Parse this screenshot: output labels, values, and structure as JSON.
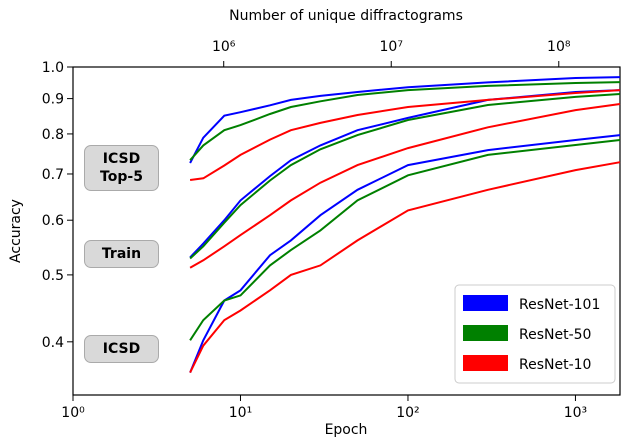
{
  "chart_data": {
    "type": "line",
    "x_label": "Epoch",
    "y_label": "Accuracy",
    "top_axis_label": "Number of unique diffractograms",
    "x": [
      5,
      6,
      8,
      10,
      15,
      20,
      30,
      50,
      100,
      300,
      1000,
      1845
    ],
    "xlim": [
      1,
      1845
    ],
    "x_log": true,
    "xticks": [
      {
        "value": 1,
        "label": "10⁰"
      },
      {
        "value": 10,
        "label": "10¹"
      },
      {
        "value": 100,
        "label": "10²"
      },
      {
        "value": 1000,
        "label": "10³"
      }
    ],
    "top_xlim": [
      126000,
      232000000
    ],
    "top_xticks": [
      {
        "value": 1000000,
        "label": "10⁶"
      },
      {
        "value": 10000000,
        "label": "10⁷"
      },
      {
        "value": 100000000,
        "label": "10⁸"
      }
    ],
    "ylim": [
      0.335,
      1
    ],
    "y_log": true,
    "yticks": [
      0.4,
      0.5,
      0.6,
      0.7,
      0.8,
      0.9,
      {
        "value": 1,
        "label": "1.0"
      }
    ],
    "metrics": [
      "ICSD Top-5",
      "Train",
      "ICSD"
    ],
    "legend": "lower right",
    "series": [
      {
        "name": "ResNet-101",
        "color": "#0000ff",
        "values": [
          [
            0.726,
            0.79,
            0.85,
            0.86,
            0.88,
            0.896,
            0.908,
            0.92,
            0.935,
            0.95,
            0.964,
            0.967
          ],
          [
            0.53,
            0.555,
            0.6,
            0.641,
            0.695,
            0.733,
            0.77,
            0.81,
            0.844,
            0.896,
            0.92,
            0.926
          ],
          [
            0.361,
            0.402,
            0.459,
            0.475,
            0.534,
            0.561,
            0.61,
            0.664,
            0.721,
            0.758,
            0.784,
            0.797
          ]
        ]
      },
      {
        "name": "ResNet-50",
        "color": "#008000",
        "values": [
          [
            0.733,
            0.77,
            0.81,
            0.824,
            0.855,
            0.875,
            0.892,
            0.911,
            0.926,
            0.939,
            0.948,
            0.951
          ],
          [
            0.528,
            0.55,
            0.595,
            0.631,
            0.685,
            0.721,
            0.76,
            0.797,
            0.838,
            0.881,
            0.905,
            0.914
          ],
          [
            0.402,
            0.43,
            0.459,
            0.467,
            0.516,
            0.543,
            0.58,
            0.641,
            0.697,
            0.746,
            0.771,
            0.784
          ]
        ]
      },
      {
        "name": "ResNet-10",
        "color": "#ff0000",
        "values": [
          [
            0.686,
            0.69,
            0.72,
            0.746,
            0.785,
            0.81,
            0.83,
            0.852,
            0.875,
            0.896,
            0.917,
            0.926
          ],
          [
            0.512,
            0.525,
            0.55,
            0.571,
            0.61,
            0.641,
            0.68,
            0.721,
            0.763,
            0.818,
            0.866,
            0.884
          ],
          [
            0.361,
            0.395,
            0.43,
            0.444,
            0.475,
            0.5,
            0.516,
            0.561,
            0.62,
            0.664,
            0.709,
            0.728
          ]
        ]
      }
    ]
  }
}
